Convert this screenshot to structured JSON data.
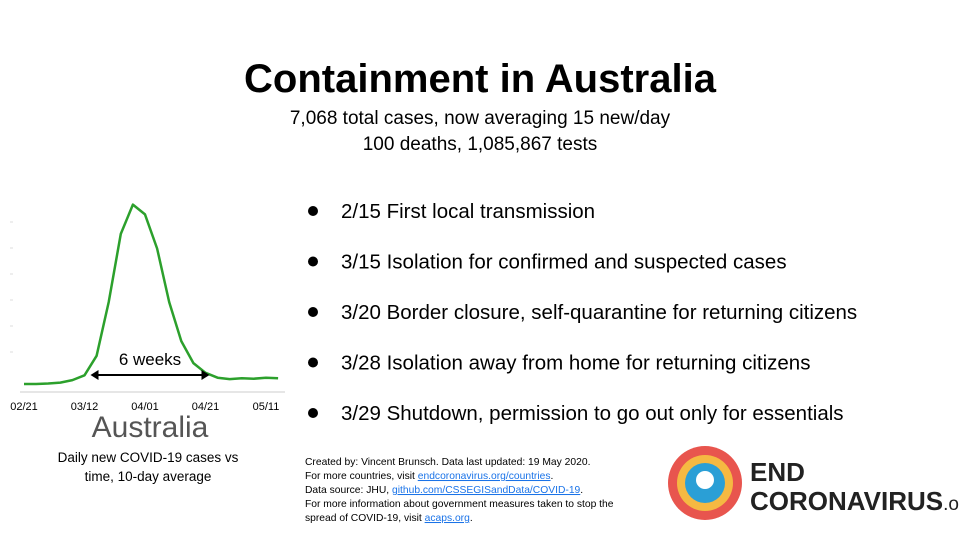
{
  "header": {
    "title": "Containment in Australia",
    "subtitle_lines": [
      "7,068 total cases, now averaging 15 new/day",
      "100 deaths, 1,085,867 tests"
    ]
  },
  "chart_data": {
    "type": "line",
    "title": "Australia",
    "caption_lines": [
      "Daily new COVID-19 cases vs",
      "time, 10-day average"
    ],
    "categories": [
      "02/21",
      null,
      null,
      null,
      null,
      "03/12",
      null,
      null,
      null,
      null,
      "04/01",
      null,
      null,
      null,
      null,
      "04/21",
      null,
      null,
      null,
      null,
      "05/11",
      null
    ],
    "values": [
      2,
      2,
      3,
      5,
      10,
      20,
      60,
      170,
      310,
      370,
      350,
      280,
      170,
      90,
      45,
      25,
      15,
      12,
      14,
      13,
      15,
      14
    ],
    "color": "#2ca02c",
    "ylim": [
      0,
      400
    ],
    "annotation": "6 weeks"
  },
  "bullets": [
    "2/15 First local transmission",
    "3/15 Isolation for confirmed and suspected cases",
    "3/20 Border closure, self-quarantine for returning citizens",
    "3/28 Isolation away from home for returning citizens",
    "3/29 Shutdown, permission to go out only for essentials"
  ],
  "credits": [
    [
      {
        "text": "Created by: Vincent Brunsch. Data last updated: 19 May 2020."
      }
    ],
    [
      {
        "text": "For more countries, visit "
      },
      {
        "text": "endcoronavirus.org/countries",
        "link": true
      },
      {
        "text": "."
      }
    ],
    [
      {
        "text": "Data source: JHU, "
      },
      {
        "text": "github.com/CSSEGISandData/COVID-19",
        "link": true
      },
      {
        "text": "."
      }
    ],
    [
      {
        "text": "For more information about government measures taken to stop the"
      }
    ],
    [
      {
        "text": "spread of COVID-19, visit "
      },
      {
        "text": "acaps.org",
        "link": true
      },
      {
        "text": "."
      }
    ]
  ],
  "logo": {
    "line1": "END",
    "line2": "CORONAVIRUS",
    "suffix": ".org"
  }
}
